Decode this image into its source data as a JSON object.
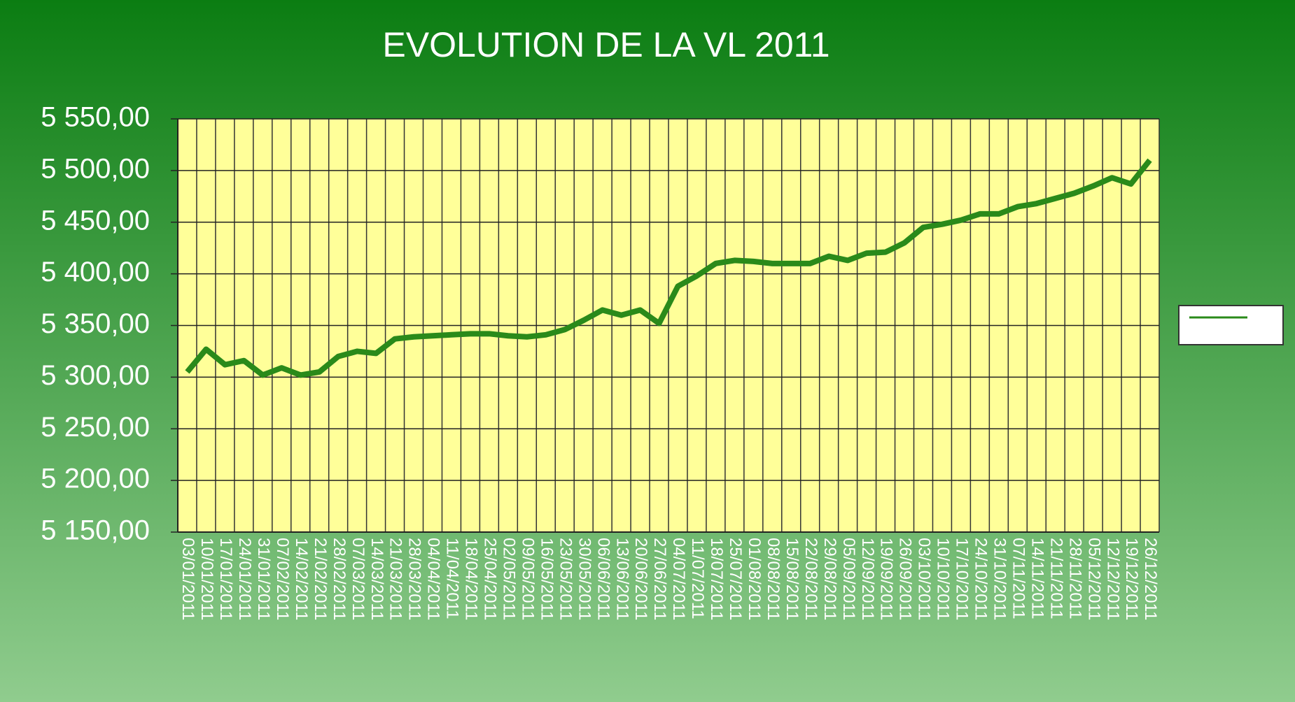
{
  "chart_data": {
    "type": "line",
    "title": "EVOLUTION DE LA VL   2011",
    "categories": [
      "03/01/2011",
      "10/01/2011",
      "17/01/2011",
      "24/01/2011",
      "31/01/2011",
      "07/02/2011",
      "14/02/2011",
      "21/02/2011",
      "28/02/2011",
      "07/03/2011",
      "14/03/2011",
      "21/03/2011",
      "28/03/2011",
      "04/04/2011",
      "11/04/2011",
      "18/04/2011",
      "25/04/2011",
      "02/05/2011",
      "09/05/2011",
      "16/05/2011",
      "23/05/2011",
      "30/05/2011",
      "06/06/2011",
      "13/06/2011",
      "20/06/2011",
      "27/06/2011",
      "04/07/2011",
      "11/07/2011",
      "18/07/2011",
      "25/07/2011",
      "01/08/2011",
      "08/08/2011",
      "15/08/2011",
      "22/08/2011",
      "29/08/2011",
      "05/09/2011",
      "12/09/2011",
      "19/09/2011",
      "26/09/2011",
      "03/10/2011",
      "10/10/2011",
      "17/10/2011",
      "24/10/2011",
      "31/10/2011",
      "07/11/2011",
      "14/11/2011",
      "21/11/2011",
      "28/11/2011",
      "05/12/2011",
      "12/12/2011",
      "19/12/2011",
      "26/12/2011"
    ],
    "values": [
      5305,
      5327,
      5312,
      5316,
      5302,
      5309,
      5302,
      5305,
      5320,
      5325,
      5323,
      5337,
      5339,
      5340,
      5341,
      5342,
      5342,
      5340,
      5339,
      5341,
      5346,
      5355,
      5365,
      5360,
      5365,
      5352,
      5388,
      5398,
      5410,
      5413,
      5412,
      5410,
      5410,
      5410,
      5417,
      5413,
      5420,
      5421,
      5430,
      5445,
      5448,
      5452,
      5458,
      5458,
      5465,
      5468,
      5473,
      5478,
      5485,
      5493,
      5487,
      5510
    ],
    "color": "#2a8a1a",
    "ylim": [
      5150,
      5550
    ],
    "yticks": [
      {
        "value": 5150,
        "label": "5 150,00"
      },
      {
        "value": 5200,
        "label": "5 200,00"
      },
      {
        "value": 5250,
        "label": "5 250,00"
      },
      {
        "value": 5300,
        "label": "5 300,00"
      },
      {
        "value": 5350,
        "label": "5 350,00"
      },
      {
        "value": 5400,
        "label": "5 400,00"
      },
      {
        "value": 5450,
        "label": "5 450,00"
      },
      {
        "value": 5500,
        "label": "5 500,00"
      },
      {
        "value": 5550,
        "label": "5 550,00"
      }
    ],
    "grid": true,
    "legend": "right"
  }
}
